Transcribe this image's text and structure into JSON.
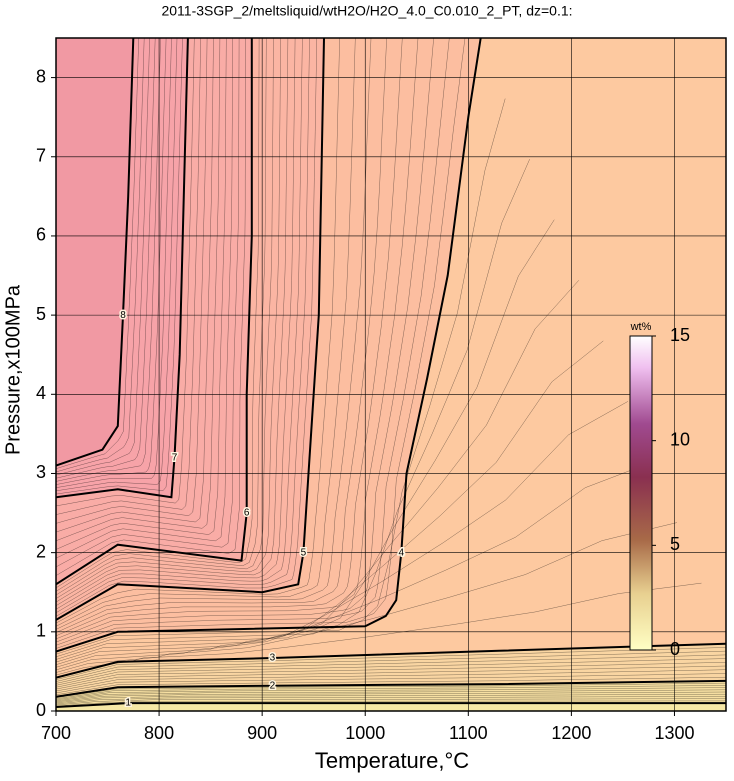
{
  "chart_data": {
    "type": "contour",
    "title": "2011-3SGP_2/meltsliquid/wtH2O/H2O_4.0_C0.010_2_PT, dz=0.1:",
    "x_label": "Temperature,°C",
    "y_label": "Pressure,x100MPa",
    "xlim": [
      700,
      1350
    ],
    "ylim": [
      0,
      8.5
    ],
    "xticks": [
      700,
      800,
      900,
      1000,
      1100,
      1200,
      1300
    ],
    "yticks": [
      0,
      1,
      2,
      3,
      4,
      5,
      6,
      7,
      8
    ],
    "grid": true,
    "background": "#f6e8a6",
    "contours": [
      {
        "level": 1,
        "color": "#f6dfa2",
        "x": [
          700,
          770,
          1350
        ],
        "y": [
          0.05,
          0.1,
          0.1
        ]
      },
      {
        "level": 2,
        "color": "#f9d5a2",
        "x": [
          700,
          760,
          910,
          1130,
          1350
        ],
        "y": [
          0.18,
          0.3,
          0.32,
          0.34,
          0.38
        ]
      },
      {
        "level": 3,
        "color": "#fdc9a0",
        "x": [
          700,
          760,
          910,
          1130,
          1350
        ],
        "y": [
          0.42,
          0.62,
          0.67,
          0.76,
          0.85
        ]
      },
      {
        "level": 4,
        "color": "#fcbea0",
        "x": [
          700,
          760,
          1000,
          1020,
          1030,
          1035,
          1040,
          1060,
          1080,
          1100,
          1112
        ],
        "y": [
          0.75,
          1.0,
          1.07,
          1.2,
          1.4,
          2.0,
          3.0,
          4.2,
          5.5,
          7.5,
          8.5
        ]
      },
      {
        "level": 5,
        "color": "#fbb5a3",
        "x": [
          700,
          760,
          900,
          935,
          940,
          945,
          955,
          960
        ],
        "y": [
          1.15,
          1.6,
          1.5,
          1.6,
          2.0,
          3.0,
          5.0,
          8.5
        ]
      },
      {
        "level": 6,
        "color": "#f9aca6",
        "x": [
          700,
          760,
          880,
          885,
          885,
          890,
          890
        ],
        "y": [
          1.6,
          2.1,
          1.9,
          2.5,
          4.0,
          6.0,
          8.5
        ]
      },
      {
        "level": 7,
        "color": "#f7a3a8",
        "x": [
          700,
          760,
          812,
          815,
          820,
          825,
          828
        ],
        "y": [
          2.7,
          2.8,
          2.7,
          3.2,
          4.5,
          7.0,
          8.5
        ]
      },
      {
        "level": 8,
        "color": "#f199a3",
        "x": [
          700,
          745,
          760,
          765,
          770,
          775
        ],
        "y": [
          3.1,
          3.3,
          3.6,
          5.0,
          6.5,
          8.5
        ]
      }
    ],
    "colorbar": {
      "label": "wt%",
      "lim": [
        0,
        15
      ],
      "ticks": [
        0,
        5,
        10,
        15
      ]
    }
  }
}
